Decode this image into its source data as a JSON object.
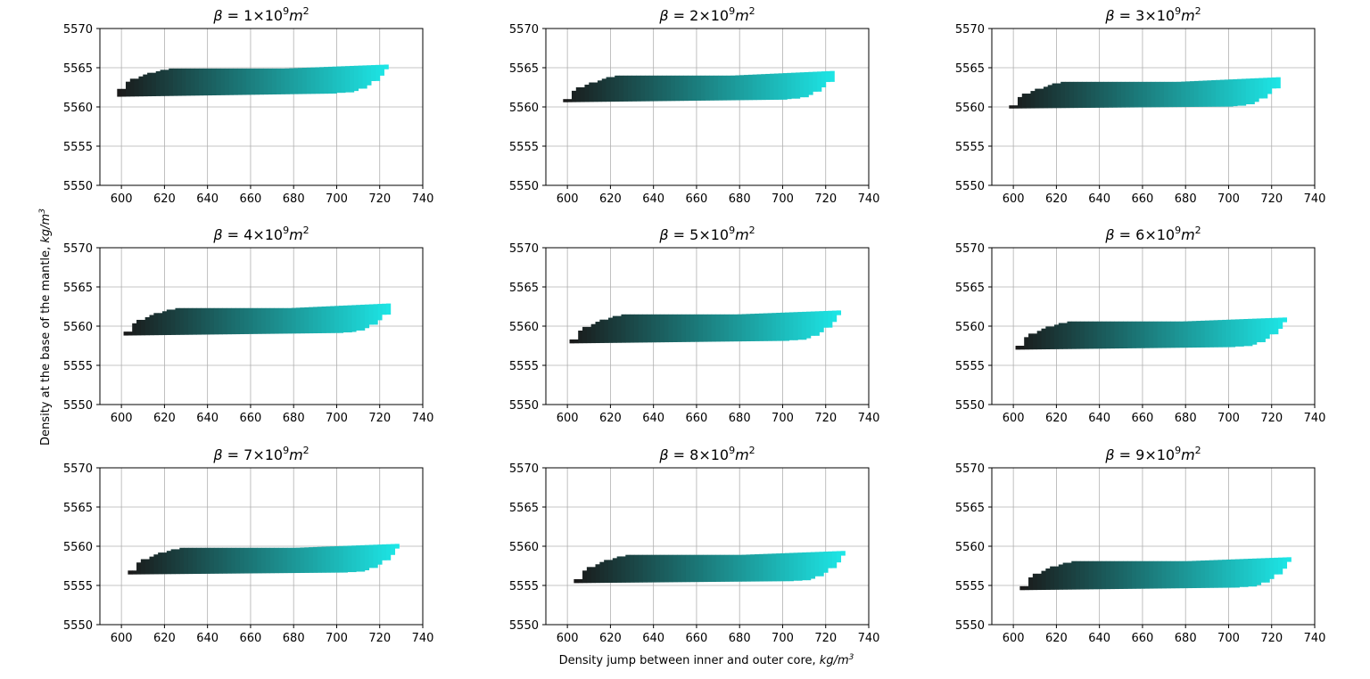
{
  "chart_data": {
    "type": "heatmap",
    "xlabel": "Density jump between inner and outer core,",
    "xlabel_unit": "kg/m",
    "xlabel_unit_exp": "3",
    "ylabel": "Density at the base of the mantle,",
    "ylabel_unit": "kg/m",
    "ylabel_unit_exp": "3",
    "xlim": [
      590,
      740
    ],
    "ylim": [
      5550,
      5570
    ],
    "xticks": [
      600,
      620,
      640,
      660,
      680,
      700,
      720,
      740
    ],
    "yticks": [
      5550,
      5555,
      5560,
      5565,
      5570
    ],
    "grid": true,
    "color_low": "#1a1a1a",
    "color_high": "#1de6e6",
    "panels": [
      {
        "title_prefix": "β = ",
        "mult": "1",
        "times": "×10",
        "exp": "9",
        "unit": "m",
        "unit_exp": "2",
        "x_min": 598,
        "x_max": 722,
        "y_upper_left": 5562.3,
        "y_upper_plateau": 5564.9,
        "y_upper_right": 5565.4,
        "y_lower": 5561.3,
        "y_lower_right": 5561.8
      },
      {
        "title_prefix": "β = ",
        "mult": "2",
        "times": "×10",
        "exp": "9",
        "unit": "m",
        "unit_exp": "2",
        "x_min": 598,
        "x_max": 723,
        "y_upper_left": 5561.0,
        "y_upper_plateau": 5564.0,
        "y_upper_right": 5564.6,
        "y_lower": 5560.6,
        "y_lower_right": 5561.0
      },
      {
        "title_prefix": "β = ",
        "mult": "3",
        "times": "×10",
        "exp": "9",
        "unit": "m",
        "unit_exp": "2",
        "x_min": 598,
        "x_max": 723,
        "y_upper_left": 5560.2,
        "y_upper_plateau": 5563.2,
        "y_upper_right": 5563.8,
        "y_lower": 5559.8,
        "y_lower_right": 5560.1
      },
      {
        "title_prefix": "β = ",
        "mult": "4",
        "times": "×10",
        "exp": "9",
        "unit": "m",
        "unit_exp": "2",
        "x_min": 601,
        "x_max": 724,
        "y_upper_left": 5559.3,
        "y_upper_plateau": 5562.3,
        "y_upper_right": 5562.9,
        "y_lower": 5558.8,
        "y_lower_right": 5559.2
      },
      {
        "title_prefix": "β = ",
        "mult": "5",
        "times": "×10",
        "exp": "9",
        "unit": "m",
        "unit_exp": "2",
        "x_min": 601,
        "x_max": 725,
        "y_upper_left": 5558.3,
        "y_upper_plateau": 5561.5,
        "y_upper_right": 5562.0,
        "y_lower": 5557.8,
        "y_lower_right": 5558.2
      },
      {
        "title_prefix": "β = ",
        "mult": "6",
        "times": "×10",
        "exp": "9",
        "unit": "m",
        "unit_exp": "2",
        "x_min": 601,
        "x_max": 725,
        "y_upper_left": 5557.5,
        "y_upper_plateau": 5560.6,
        "y_upper_right": 5561.1,
        "y_lower": 5557.0,
        "y_lower_right": 5557.4
      },
      {
        "title_prefix": "β = ",
        "mult": "7",
        "times": "×10",
        "exp": "9",
        "unit": "m",
        "unit_exp": "2",
        "x_min": 603,
        "x_max": 727,
        "y_upper_left": 5556.9,
        "y_upper_plateau": 5559.8,
        "y_upper_right": 5560.3,
        "y_lower": 5556.4,
        "y_lower_right": 5556.7
      },
      {
        "title_prefix": "β = ",
        "mult": "8",
        "times": "×10",
        "exp": "9",
        "unit": "m",
        "unit_exp": "2",
        "x_min": 603,
        "x_max": 727,
        "y_upper_left": 5555.8,
        "y_upper_plateau": 5558.9,
        "y_upper_right": 5559.4,
        "y_lower": 5555.3,
        "y_lower_right": 5555.6
      },
      {
        "title_prefix": "β = ",
        "mult": "9",
        "times": "×10",
        "exp": "9",
        "unit": "m",
        "unit_exp": "2",
        "x_min": 603,
        "x_max": 727,
        "y_upper_left": 5554.9,
        "y_upper_plateau": 5558.1,
        "y_upper_right": 5558.6,
        "y_lower": 5554.4,
        "y_lower_right": 5554.8
      }
    ]
  }
}
